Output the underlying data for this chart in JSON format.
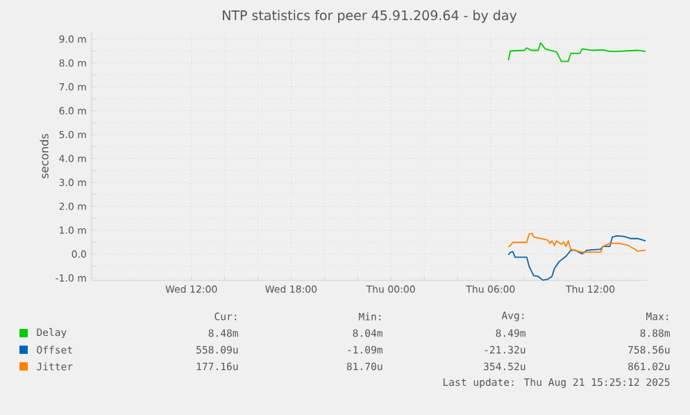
{
  "chart_data": {
    "type": "line",
    "title": "NTP statistics for peer 45.91.209.64 - by day",
    "ylabel": "seconds",
    "xlim": [
      "2025-08-20T06:00",
      "2025-08-21T15:24"
    ],
    "ylim": [
      -1.1,
      9.3
    ],
    "xticks": [
      {
        "value": "2025-08-20T12:00",
        "label": "Wed 12:00"
      },
      {
        "value": "2025-08-20T18:00",
        "label": "Wed 18:00"
      },
      {
        "value": "2025-08-21T00:00",
        "label": "Thu 00:00"
      },
      {
        "value": "2025-08-21T06:00",
        "label": "Thu 06:00"
      },
      {
        "value": "2025-08-21T12:00",
        "label": "Thu 12:00"
      }
    ],
    "yticks": [
      {
        "value": -1,
        "label": "-1.0 m"
      },
      {
        "value": 0,
        "label": "0.0"
      },
      {
        "value": 1,
        "label": "1.0 m"
      },
      {
        "value": 2,
        "label": "2.0 m"
      },
      {
        "value": 3,
        "label": "3.0 m"
      },
      {
        "value": 4,
        "label": "4.0 m"
      },
      {
        "value": 5,
        "label": "5.0 m"
      },
      {
        "value": 6,
        "label": "6.0 m"
      },
      {
        "value": 7,
        "label": "7.0 m"
      },
      {
        "value": 8,
        "label": "8.0 m"
      },
      {
        "value": 9,
        "label": "9.0 m"
      }
    ],
    "grid": true,
    "legend": "bottom",
    "line_style": "solid",
    "series": [
      {
        "name": "Delay",
        "color": "#00cc00",
        "x": [
          "2025-08-21T07:04",
          "2025-08-21T07:11",
          "2025-08-21T08:02",
          "2025-08-21T08:10",
          "2025-08-21T08:26",
          "2025-08-21T08:52",
          "2025-08-21T09:00",
          "2025-08-21T09:08",
          "2025-08-21T09:17",
          "2025-08-21T09:34",
          "2025-08-21T09:58",
          "2025-08-21T10:15",
          "2025-08-21T10:40",
          "2025-08-21T10:49",
          "2025-08-21T11:22",
          "2025-08-21T11:30",
          "2025-08-21T12:04",
          "2025-08-21T12:45",
          "2025-08-21T13:10",
          "2025-08-21T13:35",
          "2025-08-21T14:50",
          "2025-08-21T15:19"
        ],
        "values": [
          8.11,
          8.5,
          8.53,
          8.63,
          8.53,
          8.53,
          8.84,
          8.73,
          8.59,
          8.53,
          8.46,
          8.07,
          8.07,
          8.4,
          8.4,
          8.59,
          8.53,
          8.55,
          8.48,
          8.48,
          8.53,
          8.48
        ]
      },
      {
        "name": "Offset",
        "color": "#0066b3",
        "x": [
          "2025-08-21T07:04",
          "2025-08-21T07:11",
          "2025-08-21T07:20",
          "2025-08-21T07:28",
          "2025-08-21T08:10",
          "2025-08-21T08:19",
          "2025-08-21T08:35",
          "2025-08-21T08:52",
          "2025-08-21T09:08",
          "2025-08-21T09:25",
          "2025-08-21T09:41",
          "2025-08-21T09:50",
          "2025-08-21T10:07",
          "2025-08-21T10:32",
          "2025-08-21T10:49",
          "2025-08-21T11:05",
          "2025-08-21T11:30",
          "2025-08-21T11:47",
          "2025-08-21T12:37",
          "2025-08-21T12:45",
          "2025-08-21T13:10",
          "2025-08-21T13:19",
          "2025-08-21T13:35",
          "2025-08-21T14:00",
          "2025-08-21T14:25",
          "2025-08-21T14:50",
          "2025-08-21T15:19"
        ],
        "values": [
          -0.03,
          0.07,
          0.1,
          -0.13,
          -0.13,
          -0.52,
          -0.9,
          -0.94,
          -1.09,
          -1.06,
          -0.94,
          -0.61,
          -0.32,
          -0.09,
          0.16,
          0.16,
          0.01,
          0.16,
          0.2,
          0.32,
          0.32,
          0.71,
          0.76,
          0.74,
          0.65,
          0.65,
          0.55
        ]
      },
      {
        "name": "Jitter",
        "color": "#ff8000",
        "x": [
          "2025-08-21T07:04",
          "2025-08-21T07:11",
          "2025-08-21T07:20",
          "2025-08-21T08:10",
          "2025-08-21T08:19",
          "2025-08-21T08:30",
          "2025-08-21T08:35",
          "2025-08-21T09:00",
          "2025-08-21T09:25",
          "2025-08-21T09:34",
          "2025-08-21T09:41",
          "2025-08-21T09:50",
          "2025-08-21T09:58",
          "2025-08-21T10:15",
          "2025-08-21T10:23",
          "2025-08-21T10:32",
          "2025-08-21T10:40",
          "2025-08-21T10:49",
          "2025-08-21T11:13",
          "2025-08-21T11:30",
          "2025-08-21T12:37",
          "2025-08-21T12:45",
          "2025-08-21T13:10",
          "2025-08-21T13:43",
          "2025-08-21T14:17",
          "2025-08-21T14:41",
          "2025-08-21T14:50",
          "2025-08-21T15:19"
        ],
        "values": [
          0.3,
          0.36,
          0.49,
          0.49,
          0.84,
          0.86,
          0.71,
          0.65,
          0.59,
          0.45,
          0.55,
          0.36,
          0.55,
          0.41,
          0.51,
          0.32,
          0.55,
          0.2,
          0.12,
          0.08,
          0.08,
          0.32,
          0.45,
          0.45,
          0.36,
          0.2,
          0.12,
          0.16
        ]
      }
    ],
    "annotations": [
      "Cur:",
      "Min:",
      "Avg:",
      "Max:",
      "8.48m",
      "8.04m",
      "8.49m",
      "8.88m",
      "558.09u",
      "-1.09m",
      "-21.32u",
      "758.56u",
      "177.16u",
      "81.70u",
      "354.52u",
      "861.02u",
      "Last update: Thu Aug 21 15:25:12 2025"
    ]
  }
}
